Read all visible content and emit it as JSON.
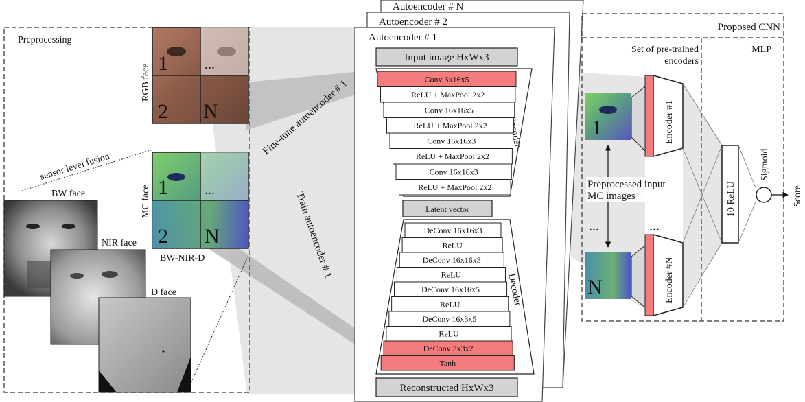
{
  "preprocessing": {
    "title": "Preprocessing",
    "rgb_label": "RGB face",
    "mc_label": "MC face",
    "fusion_label": "sensor level fusion",
    "bw_label": "BW face",
    "nir_label": "NIR face",
    "d_label": "D face",
    "combo_label": "BW-NIR-D",
    "patch_1": "1",
    "patch_2": "2",
    "patch_n": "N",
    "dots": "..."
  },
  "arrows": {
    "finetune": "Fine-tune autoencoder # 1",
    "train": "Train autoencoder # 1"
  },
  "autoencoders": {
    "back_n": "Autoencoder # N",
    "back_2": "Autoencoder # 2",
    "front": "Autoencoder # 1",
    "input": "Input image HxWx3",
    "encoder_label": "Encoder",
    "decoder_label": "Decoder",
    "encoder_layers": [
      "Conv 3x16x5",
      "ReLU + MaxPool 2x2",
      "Conv 16x16x5",
      "ReLU + MaxPool 2x2",
      "Conv 16x16x3",
      "ReLU + MaxPool 2x2",
      "Conv 16x16x3",
      "ReLU + MaxPool 2x2"
    ],
    "latent": "Latent vector",
    "decoder_layers": [
      "DeConv 16x16x3",
      "ReLU",
      "DeConv 16x16x3",
      "ReLU",
      "DeConv 16x16x5",
      "ReLU",
      "DeConv 16x3x5",
      "ReLU",
      "DeConv 3x3x2",
      "Tanh"
    ],
    "output": "Reconstructed HxWx3"
  },
  "cnn": {
    "title": "Proposed CNN",
    "encoders_title_1": "Set of pre-trained",
    "encoders_title_2": "encoders",
    "mlp_title": "MLP",
    "patch_1": "1",
    "patch_n": "N",
    "dots": "...",
    "encoder_1": "Encoder #1",
    "encoder_n": "Encoder #N",
    "pre_label_1": "Preprocessed input",
    "pre_label_2": "MC images",
    "relu": "10 ReLU",
    "sigmoid": "Sigmoid",
    "score": "Score"
  },
  "colors": {
    "highlight": "#f47c7c",
    "gray_box": "#d3d3d3",
    "band": "#d6d6d6"
  }
}
